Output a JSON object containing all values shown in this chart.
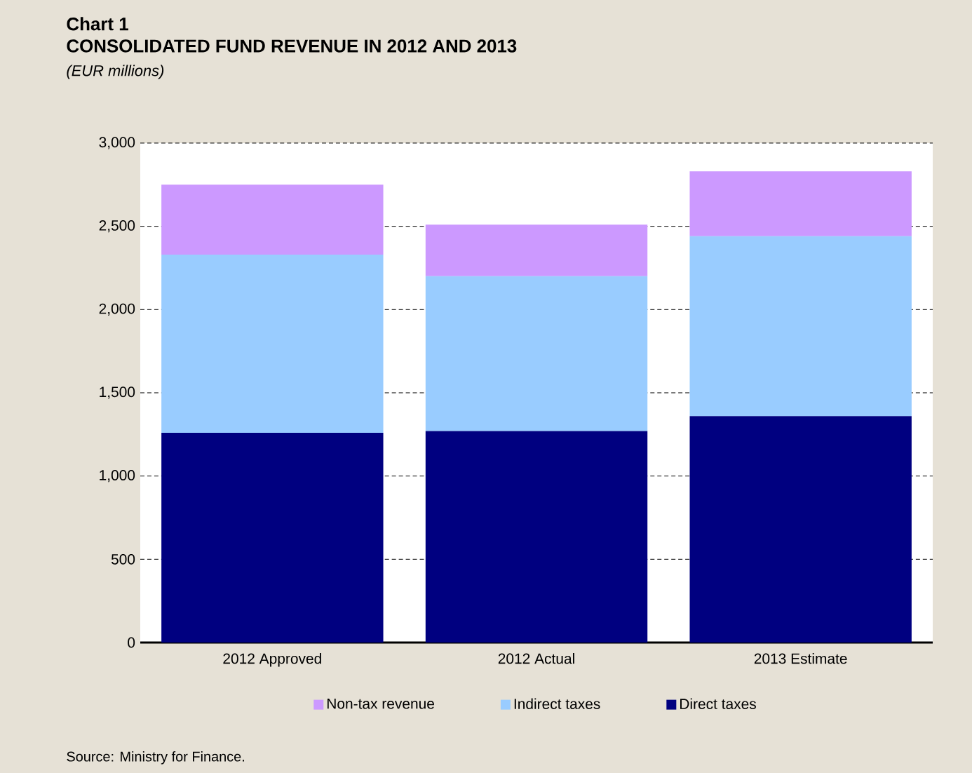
{
  "chart_data": {
    "type": "bar",
    "title": "CONSOLIDATED FUND REVENUE IN 2012 AND 2013",
    "subtitle": "(EUR millions)",
    "annotations": [
      "Chart 1",
      "Source: Ministry for Finance."
    ],
    "categories": [
      "2012 Approved",
      "2012 Actual",
      "2013 Estimate"
    ],
    "stacked": true,
    "series": [
      {
        "name": "Direct taxes",
        "color": "#000080",
        "values": [
          1260,
          1270,
          1360
        ]
      },
      {
        "name": "Indirect taxes",
        "color": "#99ccff",
        "values": [
          1070,
          930,
          1080
        ]
      },
      {
        "name": "Non-tax revenue",
        "color": "#cc99ff",
        "values": [
          420,
          310,
          390
        ]
      }
    ],
    "ylim": [
      0,
      3000
    ],
    "yticks": [
      0,
      500,
      {
        "value": 1000,
        "label": "1,000"
      },
      {
        "value": 1500,
        "label": "1,500"
      },
      {
        "value": 2000,
        "label": "2,000"
      },
      {
        "value": 2500,
        "label": "2,500"
      },
      {
        "value": 3000,
        "label": "3,000"
      }
    ],
    "grid": "y",
    "legend": "bottom"
  }
}
